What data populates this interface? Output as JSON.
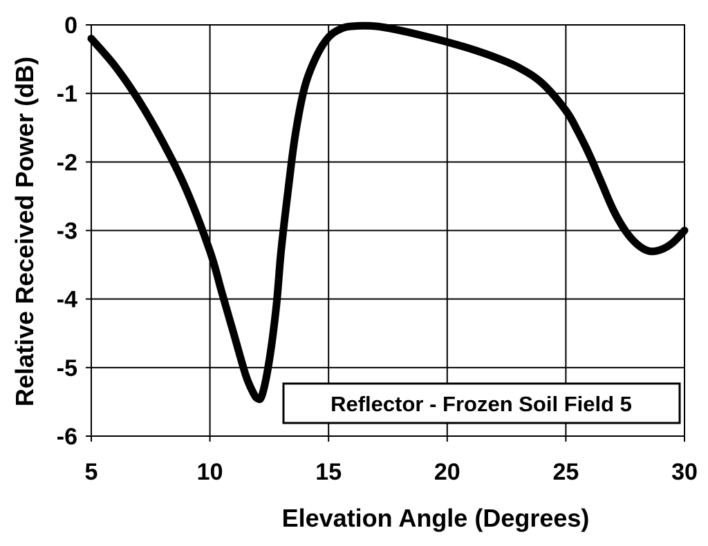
{
  "chart_data": {
    "type": "line",
    "title": "",
    "xlabel": "Elevation Angle (Degrees)",
    "ylabel": "Relative Received Power (dB)",
    "xlim": [
      5,
      30
    ],
    "ylim": [
      -6,
      0
    ],
    "xticks": [
      5,
      10,
      15,
      20,
      25,
      30
    ],
    "yticks": [
      0,
      -1,
      -2,
      -3,
      -4,
      -5,
      -6
    ],
    "grid": true,
    "annotation": "Reflector - Frozen Soil Field 5",
    "annotation_position": "bottom-right",
    "line_color": "#000000",
    "series": [
      {
        "x": [
          5,
          6,
          7,
          8,
          9,
          10,
          10.5,
          11,
          11.5,
          11.8,
          12,
          12.2,
          12.5,
          12.8,
          13,
          13.3,
          13.6,
          14,
          14.5,
          15,
          15.5,
          16,
          17,
          18,
          19,
          20,
          21,
          22,
          23,
          24,
          25,
          25.5,
          26,
          26.5,
          27,
          27.5,
          28,
          28.5,
          29,
          29.5,
          30
        ],
        "y": [
          -0.2,
          -0.6,
          -1.1,
          -1.7,
          -2.4,
          -3.3,
          -3.9,
          -4.5,
          -5.1,
          -5.35,
          -5.45,
          -5.4,
          -4.9,
          -4.1,
          -3.3,
          -2.4,
          -1.6,
          -0.9,
          -0.45,
          -0.18,
          -0.06,
          -0.02,
          -0.02,
          -0.08,
          -0.16,
          -0.25,
          -0.35,
          -0.47,
          -0.62,
          -0.85,
          -1.25,
          -1.55,
          -1.9,
          -2.3,
          -2.7,
          -3.0,
          -3.2,
          -3.3,
          -3.28,
          -3.18,
          -3.0
        ]
      }
    ]
  }
}
